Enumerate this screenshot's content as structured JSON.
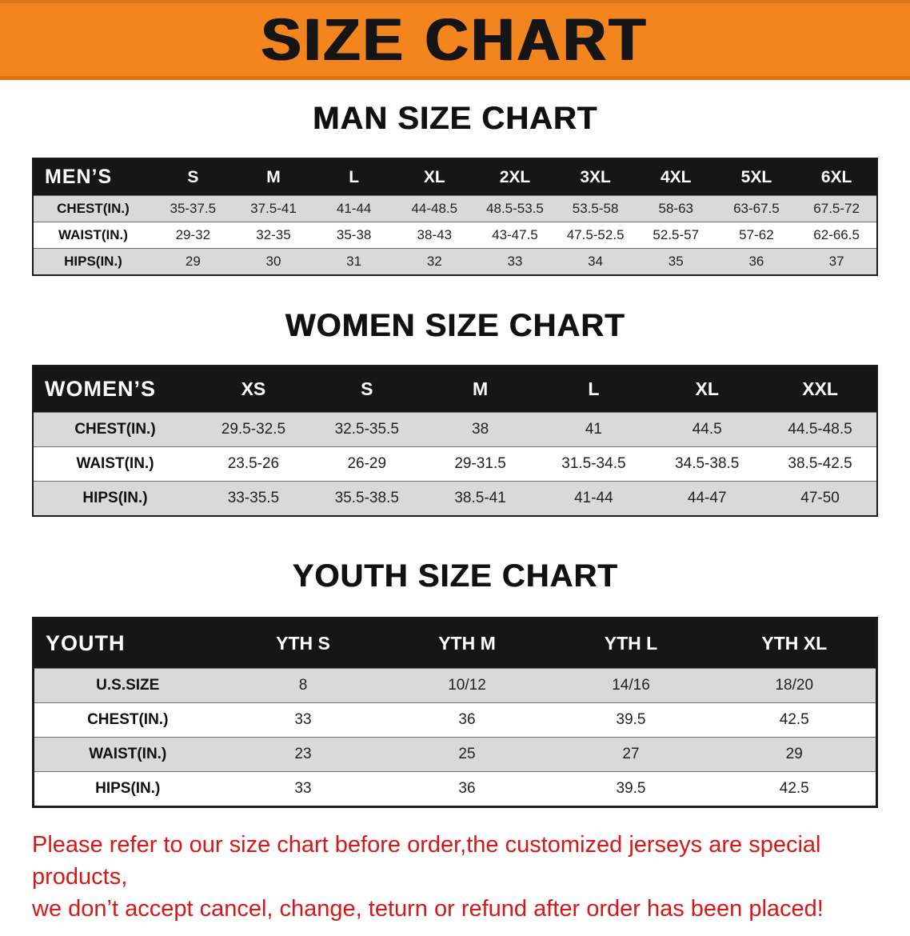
{
  "banner": {
    "title": "SIZE CHART"
  },
  "colors": {
    "banner_bg": "#f3851e",
    "banner_text": "#151515",
    "table_header_bg": "#161616",
    "table_header_text": "#ffffff",
    "row_alt_bg": "#d9d9d9",
    "disclaimer_text": "#d81717"
  },
  "sections": [
    {
      "heading": "MAN SIZE CHART",
      "table": {
        "header": [
          "MEN’S",
          "S",
          "M",
          "L",
          "XL",
          "2XL",
          "3XL",
          "4XL",
          "5XL",
          "6XL"
        ],
        "rows": [
          {
            "label": "CHEST(IN.)",
            "values": [
              "35-37.5",
              "37.5-41",
              "41-44",
              "44-48.5",
              "48.5-53.5",
              "53.5-58",
              "58-63",
              "63-67.5",
              "67.5-72"
            ]
          },
          {
            "label": "WAIST(IN.)",
            "values": [
              "29-32",
              "32-35",
              "35-38",
              "38-43",
              "43-47.5",
              "47.5-52.5",
              "52.5-57",
              "57-62",
              "62-66.5"
            ]
          },
          {
            "label": "HIPS(IN.)",
            "values": [
              "29",
              "30",
              "31",
              "32",
              "33",
              "34",
              "35",
              "36",
              "37"
            ]
          }
        ]
      }
    },
    {
      "heading": "WOMEN SIZE CHART",
      "table": {
        "header": [
          "WOMEN’S",
          "XS",
          "S",
          "M",
          "L",
          "XL",
          "XXL"
        ],
        "rows": [
          {
            "label": "CHEST(IN.)",
            "values": [
              "29.5-32.5",
              "32.5-35.5",
              "38",
              "41",
              "44.5",
              "44.5-48.5"
            ]
          },
          {
            "label": "WAIST(IN.)",
            "values": [
              "23.5-26",
              "26-29",
              "29-31.5",
              "31.5-34.5",
              "34.5-38.5",
              "38.5-42.5"
            ]
          },
          {
            "label": "HIPS(IN.)",
            "values": [
              "33-35.5",
              "35.5-38.5",
              "38.5-41",
              "41-44",
              "44-47",
              "47-50"
            ]
          }
        ]
      }
    },
    {
      "heading": "YOUTH SIZE CHART",
      "table": {
        "header": [
          "YOUTH",
          "YTH S",
          "YTH M",
          "YTH L",
          "YTH XL"
        ],
        "rows": [
          {
            "label": "U.S.SIZE",
            "values": [
              "8",
              "10/12",
              "14/16",
              "18/20"
            ]
          },
          {
            "label": "CHEST(IN.)",
            "values": [
              "33",
              "36",
              "39.5",
              "42.5"
            ]
          },
          {
            "label": "WAIST(IN.)",
            "values": [
              "23",
              "25",
              "27",
              "29"
            ]
          },
          {
            "label": "HIPS(IN.)",
            "values": [
              "33",
              "36",
              "39.5",
              "42.5"
            ]
          }
        ]
      }
    }
  ],
  "disclaimer": {
    "line1": "Please refer to our size chart before order,the customized jerseys are special products,",
    "line2": "we don’t accept cancel, change, teturn or refund after order has been placed!"
  }
}
